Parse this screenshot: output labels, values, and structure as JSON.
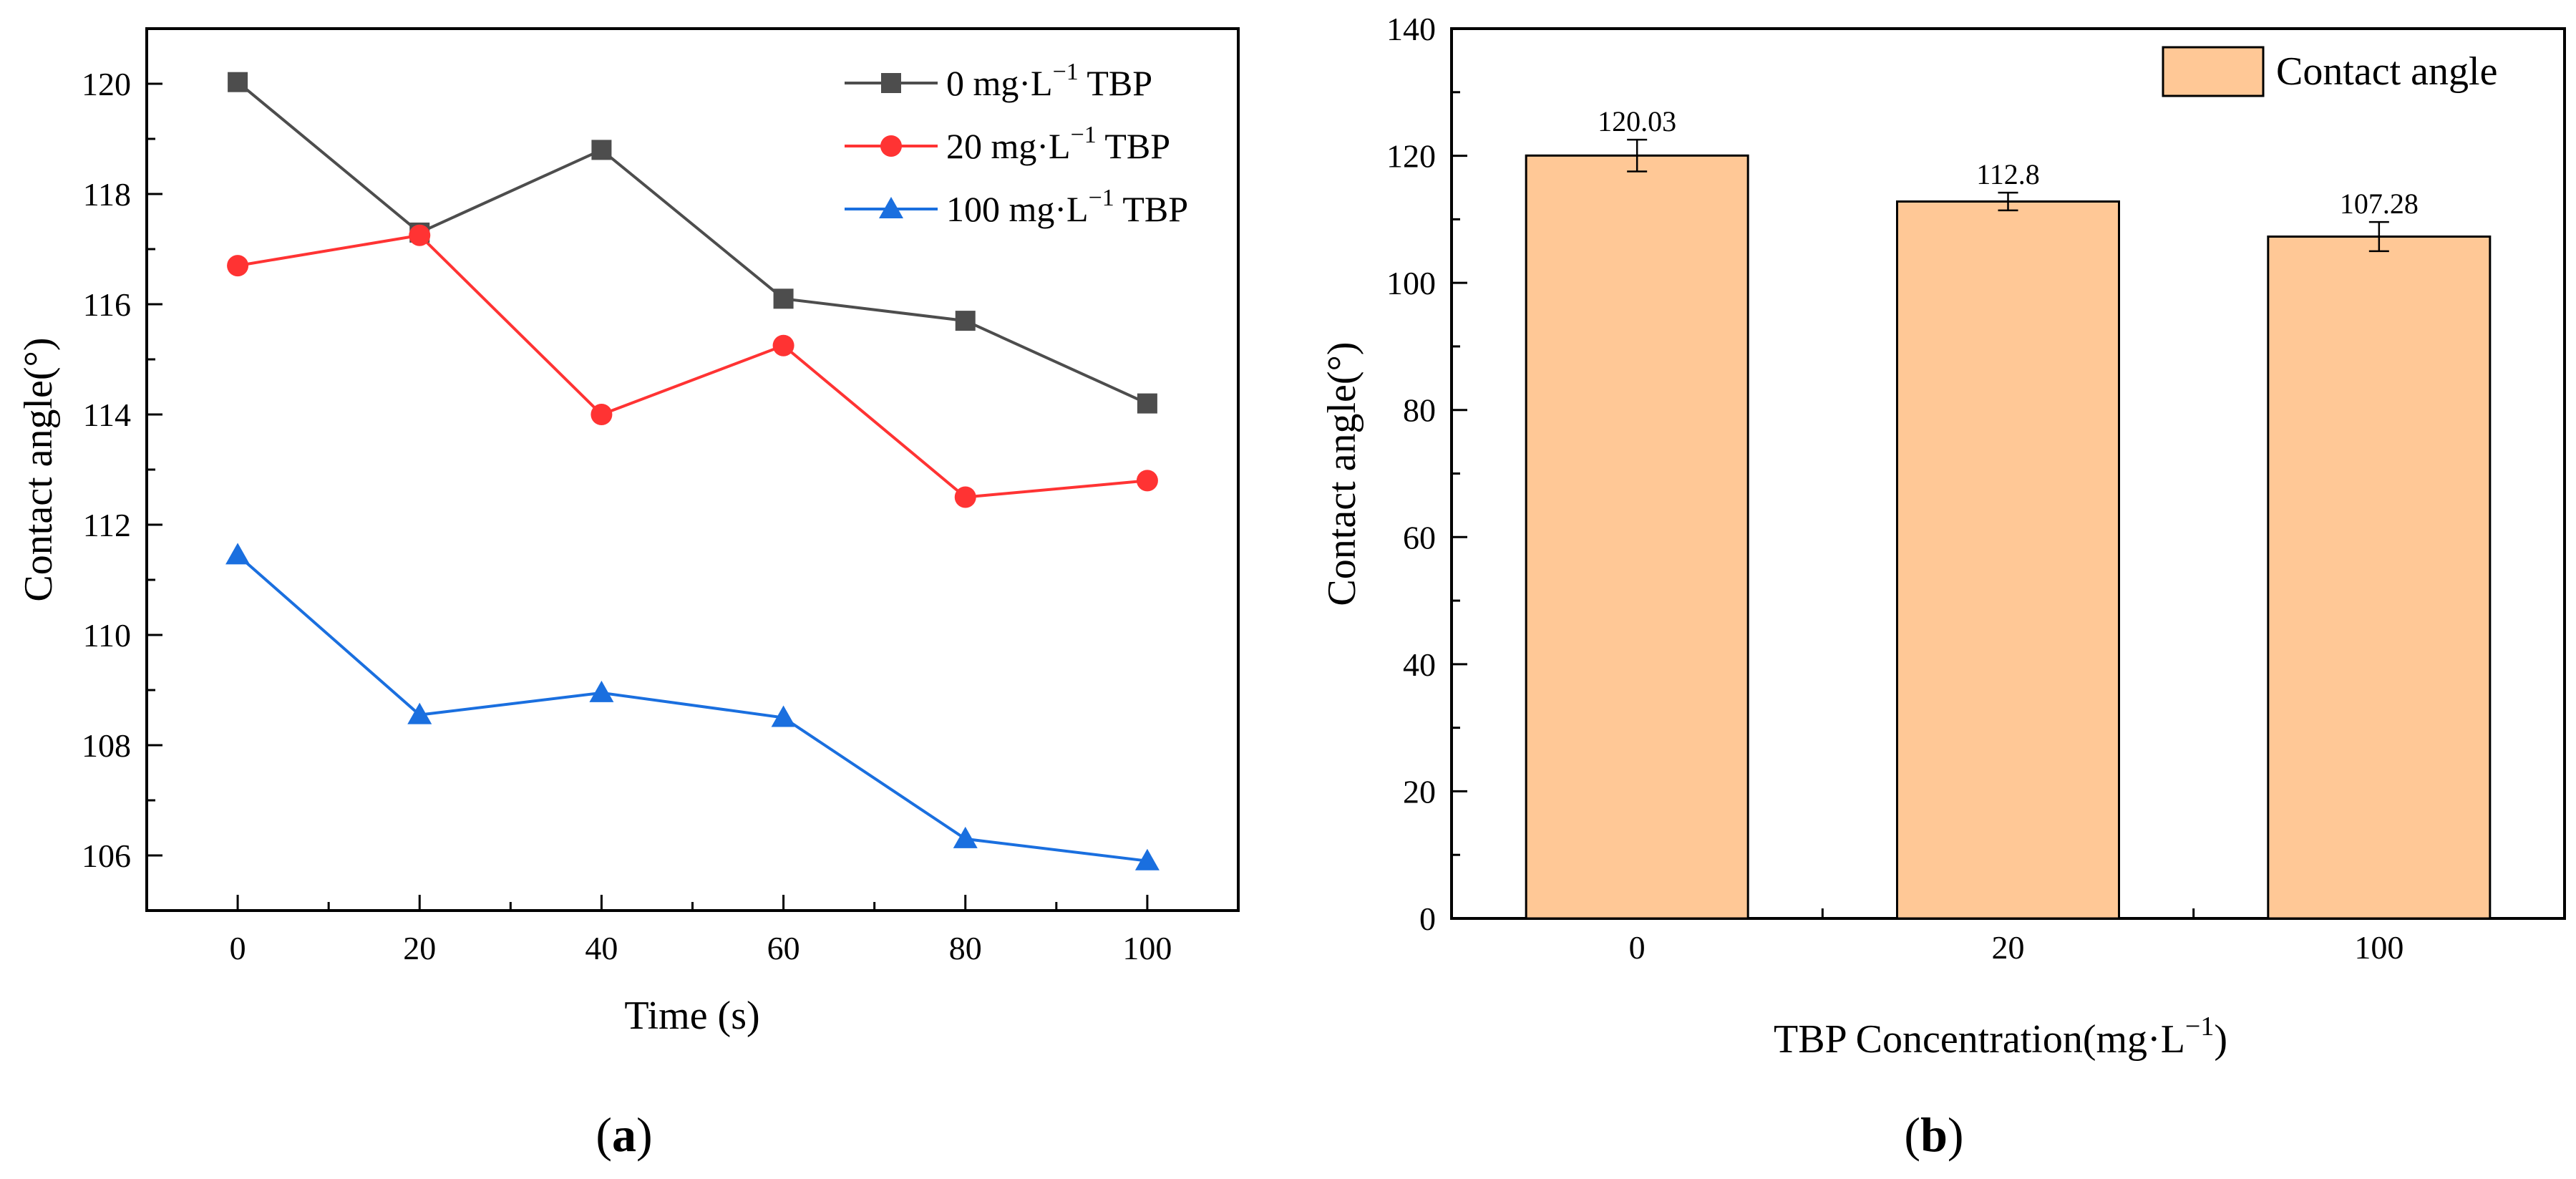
{
  "chart_data": [
    {
      "panel": "(a)",
      "panel_prefix": "(",
      "panel_letter": "a",
      "panel_suffix": ")",
      "type": "line",
      "title": "",
      "xlabel": "Time (s)",
      "ylabel": "Contact angle(°)",
      "x": [
        0,
        20,
        40,
        60,
        80,
        100
      ],
      "xlim": [
        -10,
        110
      ],
      "ylim": [
        105,
        121
      ],
      "xticks": [
        0,
        20,
        40,
        60,
        80,
        100
      ],
      "yticks": [
        106,
        108,
        110,
        112,
        114,
        116,
        118,
        120
      ],
      "grid": false,
      "legend_position": "top-right",
      "series": [
        {
          "name": "0 mg·L",
          "unit_exp": "−1",
          "name_suffix": " TBP",
          "color": "#4d4d4d",
          "marker": "square",
          "values": [
            120.03,
            117.3,
            118.8,
            116.1,
            115.7,
            114.2
          ]
        },
        {
          "name": "20 mg·L",
          "unit_exp": "−1",
          "name_suffix": " TBP",
          "color": "#ff3333",
          "marker": "circle",
          "values": [
            116.7,
            117.25,
            114.0,
            115.25,
            112.5,
            112.8
          ]
        },
        {
          "name": "100 mg·L",
          "unit_exp": "−1",
          "name_suffix": " TBP",
          "color": "#1a6fdf",
          "marker": "triangle",
          "values": [
            111.45,
            108.55,
            108.95,
            108.5,
            106.3,
            105.9
          ]
        }
      ]
    },
    {
      "panel": "(b)",
      "panel_prefix": "(",
      "panel_letter": "b",
      "panel_suffix": ")",
      "type": "bar",
      "title": "",
      "xlabel_main": "TBP Concentration(mg·L",
      "xlabel_exp": "−1",
      "xlabel_end": ")",
      "ylabel": "Contact angle(°)",
      "categories": [
        "0",
        "20",
        "100"
      ],
      "values": [
        120.03,
        112.8,
        107.28
      ],
      "value_labels": [
        "120.03",
        "112.8",
        "107.28"
      ],
      "errors": [
        2.5,
        1.4,
        2.3
      ],
      "ylim": [
        0,
        140
      ],
      "yticks": [
        0,
        20,
        40,
        60,
        80,
        100,
        120,
        140
      ],
      "grid": false,
      "legend_position": "top-right",
      "legend": "Contact angle",
      "bar_color": "#ffc896"
    }
  ]
}
